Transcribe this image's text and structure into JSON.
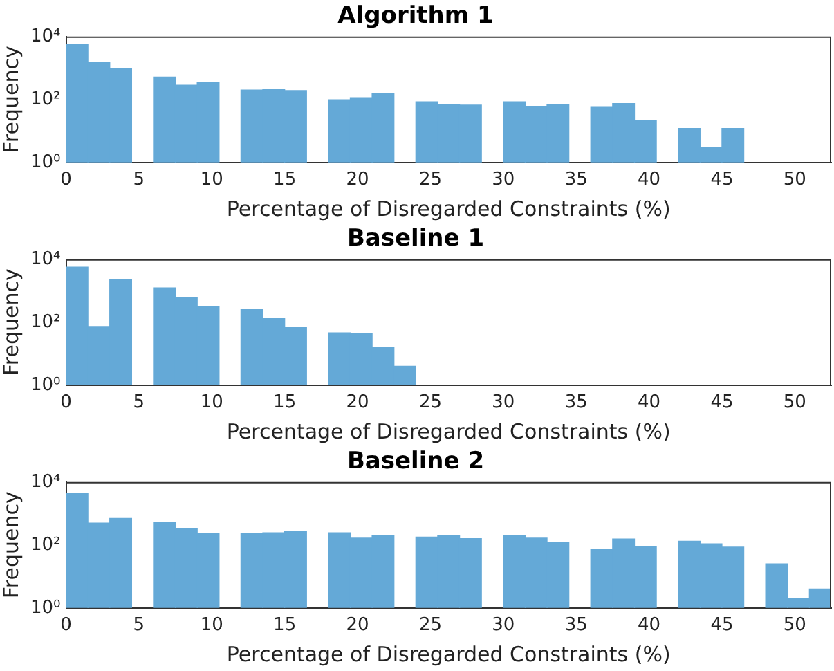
{
  "chart_data": [
    {
      "type": "histogram",
      "title": "Algorithm 1",
      "xlabel": "Percentage of Disregarded Constraints (%)",
      "ylabel": "Frequency",
      "bins": [
        0,
        1.5,
        3,
        4.5,
        6,
        7.5,
        9,
        10.5,
        12,
        13.5,
        15,
        16.5,
        18,
        19.5,
        21,
        22.5,
        24,
        25.5,
        27,
        28.5,
        30,
        31.5,
        33,
        34.5,
        36,
        37.5,
        39,
        40.5,
        42,
        43.5,
        45,
        46.5,
        48,
        49.5,
        51,
        52.5
      ],
      "values": [
        5500,
        1550,
        970,
        null,
        515,
        285,
        347,
        null,
        200,
        209,
        191,
        null,
        98,
        115,
        158,
        null,
        84,
        69,
        66,
        null,
        84,
        61,
        69,
        null,
        59,
        74,
        22,
        null,
        12,
        3,
        12,
        null,
        null,
        null,
        null
      ],
      "color": "#64a9d7",
      "log": "y",
      "grid": false,
      "legend": false,
      "xlim": [
        0,
        52.5
      ],
      "xticks": [
        0,
        5,
        10,
        15,
        20,
        25,
        30,
        35,
        40,
        45,
        50
      ],
      "ylim": [
        1,
        10000
      ],
      "yticks": [
        {
          "value": 1,
          "label": "10⁰"
        },
        {
          "value": 100,
          "label": "10²"
        },
        {
          "value": 10000,
          "label": "10⁴"
        }
      ]
    },
    {
      "type": "histogram",
      "title": "Baseline 1",
      "xlabel": "Percentage of Disregarded Constraints (%)",
      "ylabel": "Frequency",
      "bins": [
        0,
        1.5,
        3,
        4.5,
        6,
        7.5,
        9,
        10.5,
        12,
        13.5,
        15,
        16.5,
        18,
        19.5,
        21,
        22.5,
        24,
        25.5,
        27,
        28.5,
        30,
        31.5,
        33,
        34.5,
        36,
        37.5,
        39,
        40.5,
        42,
        43.5,
        45,
        46.5,
        48,
        49.5,
        51,
        52.5
      ],
      "values": [
        5600,
        73,
        2300,
        null,
        1240,
        620,
        307,
        null,
        263,
        136,
        68,
        null,
        46,
        44,
        16,
        4,
        null,
        null,
        null,
        null,
        null,
        null,
        null,
        null,
        null,
        null,
        null,
        null,
        null,
        null,
        null,
        null,
        null,
        null,
        null
      ],
      "color": "#64a9d7",
      "log": "y",
      "grid": false,
      "legend": false,
      "xlim": [
        0,
        52.5
      ],
      "xticks": [
        0,
        5,
        10,
        15,
        20,
        25,
        30,
        35,
        40,
        45,
        50
      ],
      "ylim": [
        1,
        10000
      ],
      "yticks": [
        {
          "value": 1,
          "label": "10⁰"
        },
        {
          "value": 100,
          "label": "10²"
        },
        {
          "value": 10000,
          "label": "10⁴"
        }
      ]
    },
    {
      "type": "histogram",
      "title": "Baseline 2",
      "xlabel": "Percentage of Disregarded Constraints (%)",
      "ylabel": "Frequency",
      "bins": [
        0,
        1.5,
        3,
        4.5,
        6,
        7.5,
        9,
        10.5,
        12,
        13.5,
        15,
        16.5,
        18,
        19.5,
        21,
        22.5,
        24,
        25.5,
        27,
        28.5,
        30,
        31.5,
        33,
        34.5,
        36,
        37.5,
        39,
        40.5,
        42,
        43.5,
        45,
        46.5,
        48,
        49.5,
        51,
        52.5
      ],
      "values": [
        4400,
        495,
        700,
        null,
        515,
        335,
        227,
        null,
        227,
        245,
        265,
        null,
        245,
        166,
        195,
        null,
        178,
        195,
        159,
        null,
        203,
        166,
        121,
        null,
        73,
        154,
        89,
        null,
        131,
        108,
        85,
        null,
        25,
        2,
        4
      ],
      "color": "#64a9d7",
      "log": "y",
      "grid": false,
      "legend": false,
      "xlim": [
        0,
        52.5
      ],
      "xticks": [
        0,
        5,
        10,
        15,
        20,
        25,
        30,
        35,
        40,
        45,
        50
      ],
      "ylim": [
        1,
        10000
      ],
      "yticks": [
        {
          "value": 1,
          "label": "10⁰"
        },
        {
          "value": 100,
          "label": "10²"
        },
        {
          "value": 10000,
          "label": "10⁴"
        }
      ]
    }
  ]
}
